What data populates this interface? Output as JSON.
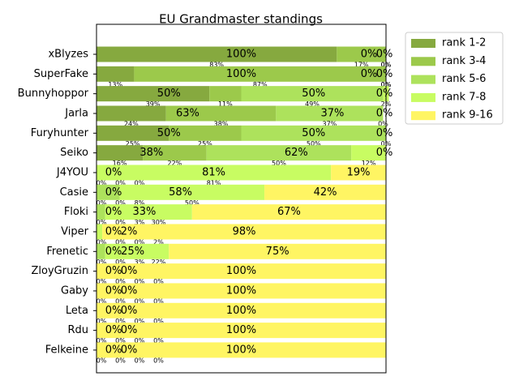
{
  "chart_data": {
    "type": "stacked-bar-horizontal",
    "title": "EU Grandmaster standings",
    "categories": [
      "xBlyzes",
      "SuperFake",
      "Bunnyhoppor",
      "Jarla",
      "Furyhunter",
      "Seiko",
      "J4YOU",
      "Casie",
      "Floki",
      "Viper",
      "Frenetic",
      "ZloyGruzin",
      "Gaby",
      "Leta",
      "Rdu",
      "Felkeine"
    ],
    "xlim": [
      0,
      100
    ],
    "legend": "outside-upper-right",
    "series": [
      {
        "name": "rank 1-2",
        "color": "#86a93f",
        "values": [
          83,
          13,
          39,
          24,
          25,
          16,
          0,
          0,
          0,
          0,
          0,
          0,
          0,
          0,
          0,
          0
        ],
        "value_labels": [
          "83%",
          "13%",
          "39%",
          "24%",
          "25%",
          "16%",
          "0%",
          "0%",
          "0%",
          "0%",
          "0%",
          "0%",
          "0%",
          "0%",
          "0%",
          "0%"
        ]
      },
      {
        "name": "rank 3-4",
        "color": "#9cc94b",
        "values": [
          17,
          87,
          11,
          38,
          25,
          22,
          0,
          0,
          0,
          0,
          0,
          0,
          0,
          0,
          0,
          0
        ],
        "value_labels": [
          "17%",
          "87%",
          "11%",
          "38%",
          "25%",
          "22%",
          "0%",
          "0%",
          "0%",
          "0%",
          "0%",
          "0%",
          "0%",
          "0%",
          "0%",
          "0%"
        ]
      },
      {
        "name": "rank 5-6",
        "color": "#ade25c",
        "values": [
          0,
          0,
          49,
          37,
          50,
          50,
          0,
          8,
          3,
          0,
          3,
          0,
          0,
          0,
          0,
          0
        ],
        "value_labels": [
          "0%",
          "0%",
          "49%",
          "37%",
          "50%",
          "50%",
          "0%",
          "8%",
          "3%",
          "0%",
          "3%",
          "0%",
          "0%",
          "0%",
          "0%",
          "0%"
        ]
      },
      {
        "name": "rank 7-8",
        "color": "#c8fc62",
        "values": [
          0,
          0,
          2,
          0,
          0,
          12,
          81,
          50,
          30,
          2,
          22,
          0,
          0,
          0,
          0,
          0
        ],
        "value_labels": [
          "0%",
          "0%",
          "2%",
          "0%",
          "0%",
          "12%",
          "81%",
          "50%",
          "30%",
          "2%",
          "22%",
          "0%",
          "0%",
          "0%",
          "0%",
          "0%"
        ]
      },
      {
        "name": "rank 9-16",
        "color": "#fff563",
        "values": [
          0,
          0,
          0,
          0,
          0,
          0,
          19,
          42,
          67,
          98,
          75,
          100,
          100,
          100,
          100,
          100
        ]
      }
    ],
    "groups": {
      "values": [
        [
          100,
          0,
          0
        ],
        [
          100,
          0,
          0
        ],
        [
          50,
          50,
          0
        ],
        [
          63,
          37,
          0
        ],
        [
          50,
          50,
          0
        ],
        [
          38,
          62,
          0
        ],
        [
          0,
          81,
          19
        ],
        [
          0,
          58,
          42
        ],
        [
          0,
          33,
          67
        ],
        [
          0,
          2,
          98
        ],
        [
          0,
          25,
          75
        ],
        [
          0,
          0,
          100
        ],
        [
          0,
          0,
          100
        ],
        [
          0,
          0,
          100
        ],
        [
          0,
          0,
          100
        ],
        [
          0,
          0,
          100
        ]
      ],
      "value_labels": [
        [
          "100%",
          "0%",
          "0%"
        ],
        [
          "100%",
          "0%",
          "0%"
        ],
        [
          "50%",
          "50%",
          "0%"
        ],
        [
          "63%",
          "37%",
          "0%"
        ],
        [
          "50%",
          "50%",
          "0%"
        ],
        [
          "38%",
          "62%",
          "0%"
        ],
        [
          "0%",
          "81%",
          "19%"
        ],
        [
          "0%",
          "58%",
          "42%"
        ],
        [
          "0%",
          "33%",
          "67%"
        ],
        [
          "0%",
          "2%",
          "98%"
        ],
        [
          "0%",
          "25%",
          "75%"
        ],
        [
          "0%",
          "0%",
          "100%"
        ],
        [
          "0%",
          "0%",
          "100%"
        ],
        [
          "0%",
          "0%",
          "100%"
        ],
        [
          "0%",
          "0%",
          "100%"
        ],
        [
          "0%",
          "0%",
          "100%"
        ]
      ]
    }
  }
}
